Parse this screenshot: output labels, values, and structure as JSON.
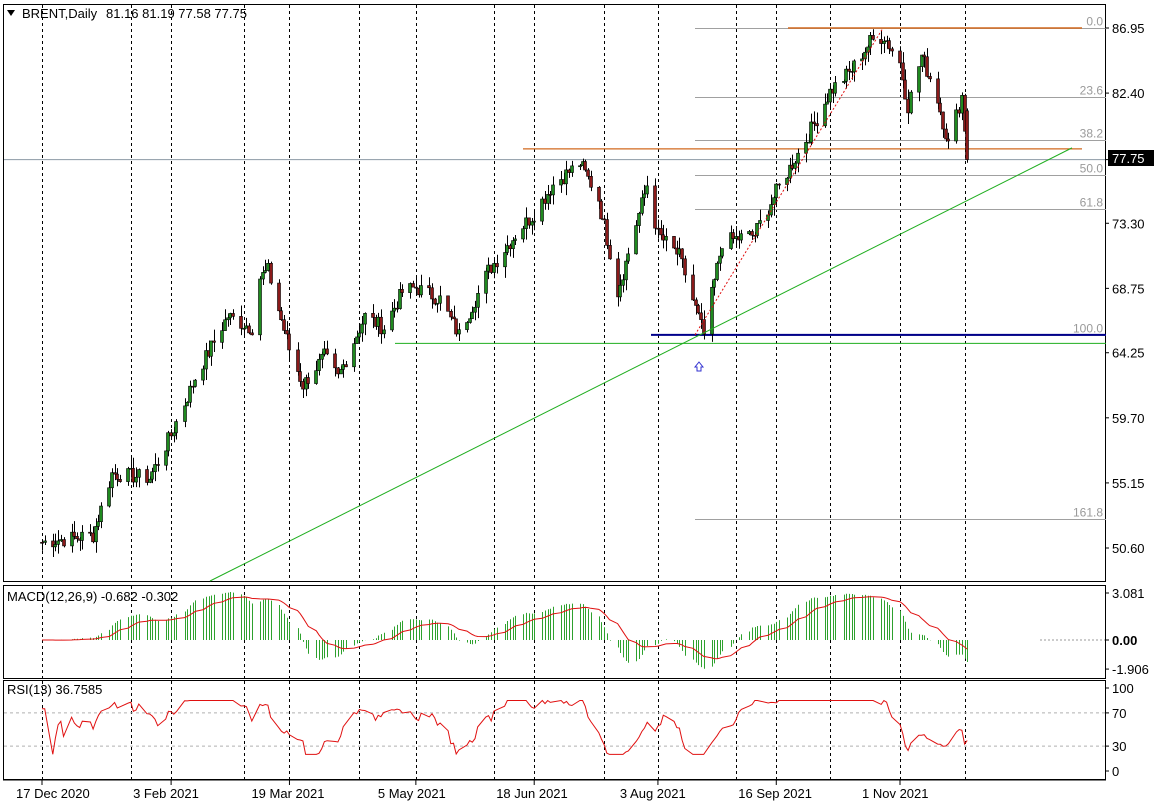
{
  "header": {
    "symbol": "BRENT,Daily",
    "ohlc": "81.16 81.19 77.58 77.75"
  },
  "colors": {
    "up_candle": "#1f8a1f",
    "down_candle": "#8b1a1a",
    "macd_hist": "#2ea12e",
    "macd_signal": "#e01010",
    "rsi_line": "#e01010",
    "trendline": "#1fae1f",
    "resistance": "#d2691e",
    "support_blue": "#00008b",
    "fib_lines": "#a0a0a0",
    "grid": "#000000"
  },
  "chart_data": [
    {
      "type": "candlestick",
      "title": "BRENT,Daily",
      "ylim": [
        48.5,
        88.0
      ],
      "y_ticks": [
        "86.95",
        "82.40",
        "77.75",
        "73.30",
        "68.75",
        "64.25",
        "59.70",
        "55.15",
        "50.60"
      ],
      "x_tick_labels": [
        "17 Dec 2020",
        "3 Feb 2021",
        "19 Mar 2021",
        "5 May 2021",
        "18 Jun 2021",
        "3 Aug 2021",
        "16 Sep 2021",
        "1 Nov 2021"
      ],
      "last_price": "77.75",
      "anchor_points": [
        {
          "x": "17 Dec 2020",
          "y": 51.0
        },
        {
          "x": "2021-01-05",
          "y": 51.5
        },
        {
          "x": "2021-01-12",
          "y": 55.8
        },
        {
          "x": "2021-01-26",
          "y": 55.5
        },
        {
          "x": "3 Feb 2021",
          "y": 58.5
        },
        {
          "x": "2021-02-12",
          "y": 62.5
        },
        {
          "x": "2021-02-24",
          "y": 66.8
        },
        {
          "x": "2021-03-05",
          "y": 66.0
        },
        {
          "x": "2021-03-08",
          "y": 69.5
        },
        {
          "x": "2021-03-11",
          "y": 70.0
        },
        {
          "x": "19 Mar 2021",
          "y": 64.5
        },
        {
          "x": "2021-03-24",
          "y": 62.0
        },
        {
          "x": "2021-04-01",
          "y": 64.0
        },
        {
          "x": "2021-04-06",
          "y": 62.5
        },
        {
          "x": "2021-04-16",
          "y": 66.8
        },
        {
          "x": "2021-04-23",
          "y": 66.0
        },
        {
          "x": "2021-04-30",
          "y": 68.5
        },
        {
          "x": "5 May 2021",
          "y": 68.8
        },
        {
          "x": "2021-05-14",
          "y": 68.0
        },
        {
          "x": "2021-05-21",
          "y": 65.5
        },
        {
          "x": "2021-06-01",
          "y": 70.0
        },
        {
          "x": "2021-06-11",
          "y": 72.5
        },
        {
          "x": "18 Jun 2021",
          "y": 74.0
        },
        {
          "x": "2021-06-25",
          "y": 76.0
        },
        {
          "x": "2021-07-05",
          "y": 77.5
        },
        {
          "x": "2021-07-12",
          "y": 75.0
        },
        {
          "x": "2021-07-19",
          "y": 68.5
        },
        {
          "x": "2021-07-30",
          "y": 76.0
        },
        {
          "x": "3 Aug 2021",
          "y": 72.5
        },
        {
          "x": "2021-08-11",
          "y": 71.0
        },
        {
          "x": "2021-08-20",
          "y": 65.5
        },
        {
          "x": "2021-08-27",
          "y": 72.0
        },
        {
          "x": "2021-09-08",
          "y": 72.5
        },
        {
          "x": "16 Sep 2021",
          "y": 75.5
        },
        {
          "x": "2021-09-28",
          "y": 79.5
        },
        {
          "x": "2021-10-06",
          "y": 82.5
        },
        {
          "x": "2021-10-14",
          "y": 84.0
        },
        {
          "x": "2021-10-21",
          "y": 86.0
        },
        {
          "x": "2021-10-26",
          "y": 86.4
        },
        {
          "x": "1 Nov 2021",
          "y": 84.5
        },
        {
          "x": "2021-11-04",
          "y": 81.5
        },
        {
          "x": "2021-11-09",
          "y": 85.0
        },
        {
          "x": "2021-11-15",
          "y": 82.0
        },
        {
          "x": "2021-11-19",
          "y": 78.8
        },
        {
          "x": "2021-11-24",
          "y": 82.2
        },
        {
          "x": "2021-11-26",
          "y": 77.75
        }
      ],
      "fibonacci": [
        {
          "label": "0.0",
          "price": 86.95
        },
        {
          "label": "23.6",
          "price": 82.1
        },
        {
          "label": "38.2",
          "price": 79.1
        },
        {
          "label": "50.0",
          "price": 76.7
        },
        {
          "label": "61.8",
          "price": 74.3
        },
        {
          "label": "100.0",
          "price": 65.5
        },
        {
          "label": "161.8",
          "price": 52.6
        }
      ],
      "levels": {
        "resistance_top": 86.95,
        "resistance_mid": 78.5,
        "support_blue": 65.5,
        "support_green": 64.9,
        "current_price_line": 77.75
      }
    },
    {
      "type": "histogram-line",
      "title": "MACD(12,26,9) -0.682 -0.302",
      "y_ticks": [
        "3.081",
        "0.00",
        "-1.906"
      ],
      "ylim": [
        -2.3,
        3.3
      ]
    },
    {
      "type": "line",
      "title": "RSI(13) 36.7585",
      "y_ticks": [
        "100",
        "70",
        "30",
        "0"
      ],
      "ylim": [
        0,
        100
      ]
    }
  ]
}
